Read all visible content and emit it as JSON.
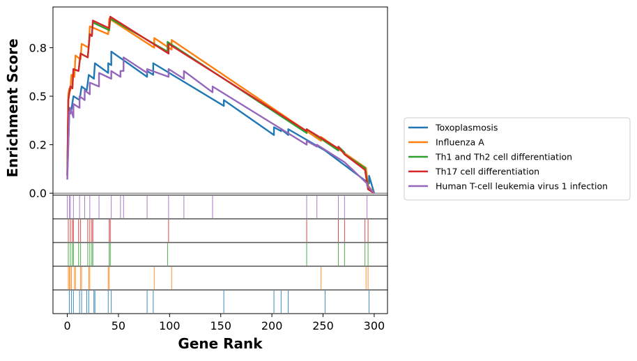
{
  "chart_data": {
    "type": "line",
    "title": "",
    "xlabel": "Gene Rank",
    "ylabel": "Enrichment Score",
    "xlim": [
      -14,
      313
    ],
    "ylim": [
      -0.01,
      0.96
    ],
    "xticks": [
      0,
      50,
      100,
      150,
      200,
      250,
      300
    ],
    "yticks": [
      0.0,
      0.25,
      0.5,
      0.75
    ],
    "ytick_labels": [
      "0.0",
      "0.2",
      "0.5",
      "0.8"
    ],
    "zero_line": true,
    "grid": false,
    "legend_position": "right",
    "series": [
      {
        "name": "Toxoplasmosis",
        "color": "#1f77b4",
        "points": [
          [
            0,
            0.09
          ],
          [
            2,
            0.42
          ],
          [
            2,
            0.44
          ],
          [
            4,
            0.43
          ],
          [
            6,
            0.5
          ],
          [
            12,
            0.48
          ],
          [
            14,
            0.55
          ],
          [
            19,
            0.53
          ],
          [
            21,
            0.61
          ],
          [
            26,
            0.59
          ],
          [
            27,
            0.67
          ],
          [
            40,
            0.62
          ],
          [
            40,
            0.67
          ],
          [
            43,
            0.66
          ],
          [
            43,
            0.73
          ],
          [
            78,
            0.6
          ],
          [
            78,
            0.63
          ],
          [
            84,
            0.61
          ],
          [
            84,
            0.67
          ],
          [
            153,
            0.45
          ],
          [
            153,
            0.48
          ],
          [
            202,
            0.3
          ],
          [
            202,
            0.34
          ],
          [
            209,
            0.32
          ],
          [
            209,
            0.33
          ],
          [
            216,
            0.3
          ],
          [
            216,
            0.33
          ],
          [
            252,
            0.22
          ],
          [
            295,
            0.05
          ],
          [
            295,
            0.09
          ],
          [
            300,
            0.0
          ]
        ]
      },
      {
        "name": "Influenza A",
        "color": "#ff7f0e",
        "points": [
          [
            0,
            0.1
          ],
          [
            1,
            0.51
          ],
          [
            2,
            0.54
          ],
          [
            3,
            0.53
          ],
          [
            4,
            0.61
          ],
          [
            7,
            0.6
          ],
          [
            8,
            0.71
          ],
          [
            13,
            0.69
          ],
          [
            14,
            0.77
          ],
          [
            21,
            0.75
          ],
          [
            22,
            0.86
          ],
          [
            40,
            0.82
          ],
          [
            41,
            0.9
          ],
          [
            85,
            0.75
          ],
          [
            85,
            0.8
          ],
          [
            102,
            0.74
          ],
          [
            102,
            0.79
          ],
          [
            248,
            0.27
          ],
          [
            248,
            0.29
          ],
          [
            292,
            0.13
          ],
          [
            294,
            0.04
          ],
          [
            300,
            0.0
          ]
        ]
      },
      {
        "name": "Th1 and Th2 cell differentiation",
        "color": "#2ca02c",
        "points": [
          [
            0,
            0.09
          ],
          [
            1,
            0.48
          ],
          [
            3,
            0.55
          ],
          [
            5,
            0.54
          ],
          [
            6,
            0.64
          ],
          [
            11,
            0.63
          ],
          [
            13,
            0.72
          ],
          [
            20,
            0.7
          ],
          [
            22,
            0.82
          ],
          [
            24,
            0.81
          ],
          [
            25,
            0.88
          ],
          [
            41,
            0.84
          ],
          [
            42,
            0.9
          ],
          [
            98,
            0.73
          ],
          [
            98,
            0.78
          ],
          [
            234,
            0.31
          ],
          [
            234,
            0.33
          ],
          [
            265,
            0.22
          ],
          [
            265,
            0.24
          ],
          [
            271,
            0.21
          ],
          [
            271,
            0.2
          ],
          [
            291,
            0.13
          ],
          [
            294,
            0.03
          ],
          [
            300,
            0.0
          ]
        ]
      },
      {
        "name": "Th17 cell differentiation",
        "color": "#d62728",
        "points": [
          [
            0,
            0.09
          ],
          [
            1,
            0.48
          ],
          [
            3,
            0.55
          ],
          [
            5,
            0.54
          ],
          [
            6,
            0.64
          ],
          [
            11,
            0.63
          ],
          [
            13,
            0.72
          ],
          [
            20,
            0.7
          ],
          [
            22,
            0.82
          ],
          [
            24,
            0.81
          ],
          [
            25,
            0.89
          ],
          [
            41,
            0.85
          ],
          [
            42,
            0.91
          ],
          [
            99,
            0.72
          ],
          [
            99,
            0.77
          ],
          [
            234,
            0.32
          ],
          [
            234,
            0.33
          ],
          [
            265,
            0.23
          ],
          [
            265,
            0.24
          ],
          [
            271,
            0.2
          ],
          [
            291,
            0.12
          ],
          [
            294,
            0.02
          ],
          [
            300,
            0.0
          ]
        ]
      },
      {
        "name": "Human T-cell leukemia virus 1 infection",
        "color": "#9467bd",
        "points": [
          [
            0,
            0.07
          ],
          [
            2,
            0.42
          ],
          [
            3,
            0.41
          ],
          [
            3,
            0.44
          ],
          [
            6,
            0.39
          ],
          [
            6,
            0.46
          ],
          [
            12,
            0.44
          ],
          [
            12,
            0.5
          ],
          [
            17,
            0.48
          ],
          [
            17,
            0.53
          ],
          [
            22,
            0.51
          ],
          [
            22,
            0.57
          ],
          [
            31,
            0.55
          ],
          [
            31,
            0.62
          ],
          [
            43,
            0.59
          ],
          [
            43,
            0.63
          ],
          [
            52,
            0.6
          ],
          [
            52,
            0.63
          ],
          [
            55,
            0.63
          ],
          [
            55,
            0.7
          ],
          [
            78,
            0.62
          ],
          [
            78,
            0.64
          ],
          [
            99,
            0.6
          ],
          [
            99,
            0.64
          ],
          [
            114,
            0.59
          ],
          [
            114,
            0.63
          ],
          [
            142,
            0.52
          ],
          [
            142,
            0.55
          ],
          [
            234,
            0.25
          ],
          [
            234,
            0.27
          ],
          [
            244,
            0.24
          ],
          [
            244,
            0.25
          ],
          [
            265,
            0.18
          ],
          [
            271,
            0.16
          ],
          [
            293,
            0.05
          ],
          [
            293,
            0.04
          ],
          [
            300,
            0.0
          ]
        ]
      }
    ],
    "rug": [
      {
        "name": "Human T-cell leukemia virus 1 infection",
        "color": "#9467bd",
        "positions": [
          0,
          2,
          3,
          6,
          12,
          17,
          22,
          31,
          43,
          52,
          55,
          78,
          99,
          114,
          142,
          234,
          244,
          265,
          271,
          293
        ]
      },
      {
        "name": "Th17 cell differentiation",
        "color": "#d62728",
        "positions": [
          1,
          3,
          5,
          6,
          11,
          13,
          20,
          22,
          24,
          25,
          41,
          42,
          99,
          234,
          265,
          271,
          291,
          294
        ]
      },
      {
        "name": "Th1 and Th2 cell differentiation",
        "color": "#2ca02c",
        "positions": [
          1,
          3,
          5,
          6,
          11,
          13,
          20,
          22,
          24,
          25,
          41,
          42,
          98,
          234,
          265,
          271,
          291,
          294
        ]
      },
      {
        "name": "Influenza A",
        "color": "#ff7f0e",
        "positions": [
          1,
          2,
          3,
          4,
          7,
          8,
          13,
          14,
          21,
          22,
          40,
          41,
          85,
          102,
          248,
          292,
          294
        ]
      },
      {
        "name": "Toxoplasmosis",
        "color": "#1f77b4",
        "positions": [
          2,
          4,
          6,
          12,
          14,
          19,
          21,
          26,
          27,
          40,
          43,
          78,
          84,
          153,
          202,
          209,
          216,
          252,
          295
        ]
      }
    ]
  }
}
